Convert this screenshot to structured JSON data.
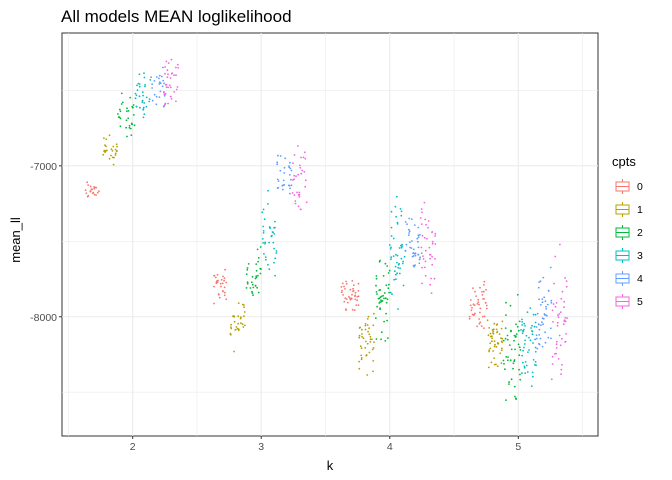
{
  "chart_data": {
    "type": "scatter",
    "title": "All models MEAN loglikelihood",
    "xlabel": "k",
    "ylabel": "mean_ll",
    "x_ticks": [
      2,
      3,
      4,
      5
    ],
    "y_ticks": [
      -7000,
      -8000
    ],
    "xlim": [
      1.45,
      5.62
    ],
    "ylim": [
      -8790,
      -6120
    ],
    "grid": true,
    "jitter": true,
    "legend": {
      "title": "cpts",
      "placement": "right",
      "entries": [
        "0",
        "1",
        "2",
        "3",
        "4",
        "5"
      ]
    },
    "colors": [
      "#F8766D",
      "#B79F00",
      "#00BA38",
      "#00BFC4",
      "#619CFF",
      "#F564E3"
    ],
    "series": [
      {
        "name": "0",
        "clusters": [
          {
            "k": 2,
            "x": [
              1.62,
              1.74
            ],
            "y": [
              -7250,
              -7080
            ],
            "n": 22
          },
          {
            "k": 3,
            "x": [
              2.62,
              2.76
            ],
            "y": [
              -7950,
              -7650
            ],
            "n": 30
          },
          {
            "k": 4,
            "x": [
              3.62,
              3.76
            ],
            "y": [
              -8000,
              -7720
            ],
            "n": 40
          },
          {
            "k": 5,
            "x": [
              4.62,
              4.76
            ],
            "y": [
              -8150,
              -7680
            ],
            "n": 42
          }
        ]
      },
      {
        "name": "1",
        "clusters": [
          {
            "k": 2,
            "x": [
              1.76,
              1.88
            ],
            "y": [
              -7050,
              -6770
            ],
            "n": 28
          },
          {
            "k": 3,
            "x": [
              2.76,
              2.88
            ],
            "y": [
              -8280,
              -7780
            ],
            "n": 30
          },
          {
            "k": 4,
            "x": [
              3.76,
              3.88
            ],
            "y": [
              -8430,
              -7880
            ],
            "n": 42
          },
          {
            "k": 5,
            "x": [
              4.76,
              4.88
            ],
            "y": [
              -8440,
              -7900
            ],
            "n": 48
          }
        ]
      },
      {
        "name": "2",
        "clusters": [
          {
            "k": 2,
            "x": [
              1.88,
              2.02
            ],
            "y": [
              -6830,
              -6480
            ],
            "n": 30
          },
          {
            "k": 3,
            "x": [
              2.88,
              3.0
            ],
            "y": [
              -7980,
              -7440
            ],
            "n": 32
          },
          {
            "k": 4,
            "x": [
              3.88,
              4.0
            ],
            "y": [
              -8250,
              -7500
            ],
            "n": 45
          },
          {
            "k": 5,
            "x": [
              4.88,
              5.02
            ],
            "y": [
              -8680,
              -7750
            ],
            "n": 50
          }
        ]
      },
      {
        "name": "3",
        "clusters": [
          {
            "k": 2,
            "x": [
              2.02,
              2.14
            ],
            "y": [
              -6760,
              -6340
            ],
            "n": 32
          },
          {
            "k": 3,
            "x": [
              3.0,
              3.12
            ],
            "y": [
              -7840,
              -7040
            ],
            "n": 36
          },
          {
            "k": 4,
            "x": [
              4.0,
              4.12
            ],
            "y": [
              -8080,
              -7140
            ],
            "n": 45
          },
          {
            "k": 5,
            "x": [
              5.02,
              5.14
            ],
            "y": [
              -8620,
              -7780
            ],
            "n": 50
          }
        ]
      },
      {
        "name": "4",
        "clusters": [
          {
            "k": 2,
            "x": [
              2.14,
              2.26
            ],
            "y": [
              -6700,
              -6300
            ],
            "n": 28
          },
          {
            "k": 3,
            "x": [
              3.12,
              3.24
            ],
            "y": [
              -7300,
              -6880
            ],
            "n": 30
          },
          {
            "k": 4,
            "x": [
              4.12,
              4.24
            ],
            "y": [
              -7850,
              -7250
            ],
            "n": 40
          },
          {
            "k": 5,
            "x": [
              5.14,
              5.26
            ],
            "y": [
              -8460,
              -7520
            ],
            "n": 45
          }
        ]
      },
      {
        "name": "5",
        "clusters": [
          {
            "k": 2,
            "x": [
              2.24,
              2.36
            ],
            "y": [
              -6690,
              -6180
            ],
            "n": 32
          },
          {
            "k": 3,
            "x": [
              3.24,
              3.36
            ],
            "y": [
              -7470,
              -6740
            ],
            "n": 32
          },
          {
            "k": 4,
            "x": [
              4.24,
              4.36
            ],
            "y": [
              -7980,
              -7120
            ],
            "n": 40
          },
          {
            "k": 5,
            "x": [
              5.26,
              5.38
            ],
            "y": [
              -8680,
              -7440
            ],
            "n": 45
          }
        ]
      }
    ]
  }
}
